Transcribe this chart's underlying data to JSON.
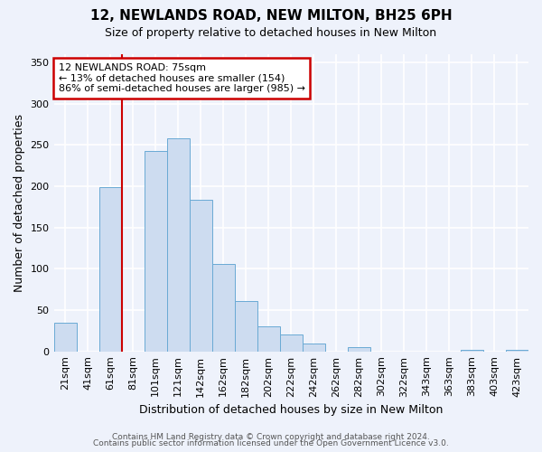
{
  "title": "12, NEWLANDS ROAD, NEW MILTON, BH25 6PH",
  "subtitle": "Size of property relative to detached houses in New Milton",
  "xlabel": "Distribution of detached houses by size in New Milton",
  "ylabel": "Number of detached properties",
  "bar_labels": [
    "21sqm",
    "41sqm",
    "61sqm",
    "81sqm",
    "101sqm",
    "121sqm",
    "142sqm",
    "162sqm",
    "182sqm",
    "202sqm",
    "222sqm",
    "242sqm",
    "262sqm",
    "282sqm",
    "302sqm",
    "322sqm",
    "343sqm",
    "363sqm",
    "383sqm",
    "403sqm",
    "423sqm"
  ],
  "bar_values": [
    35,
    0,
    199,
    0,
    243,
    258,
    184,
    106,
    61,
    30,
    20,
    10,
    0,
    5,
    0,
    0,
    0,
    0,
    2,
    0,
    2
  ],
  "bar_color": "#cddcf0",
  "bar_edge_color": "#6aaad4",
  "highlight_line_color": "#cc0000",
  "annotation_title": "12 NEWLANDS ROAD: 75sqm",
  "annotation_line1": "← 13% of detached houses are smaller (154)",
  "annotation_line2": "86% of semi-detached houses are larger (985) →",
  "annotation_box_color": "white",
  "annotation_box_edge_color": "#cc0000",
  "ylim": [
    0,
    360
  ],
  "yticks": [
    0,
    50,
    100,
    150,
    200,
    250,
    300,
    350
  ],
  "footer1": "Contains HM Land Registry data © Crown copyright and database right 2024.",
  "footer2": "Contains public sector information licensed under the Open Government Licence v3.0.",
  "background_color": "#eef2fb",
  "plot_bg_color": "#eef2fb",
  "grid_color": "#ffffff",
  "title_fontsize": 11,
  "subtitle_fontsize": 9,
  "tick_fontsize": 8,
  "ylabel_fontsize": 9,
  "xlabel_fontsize": 9,
  "footer_fontsize": 6.5,
  "annotation_fontsize": 8
}
